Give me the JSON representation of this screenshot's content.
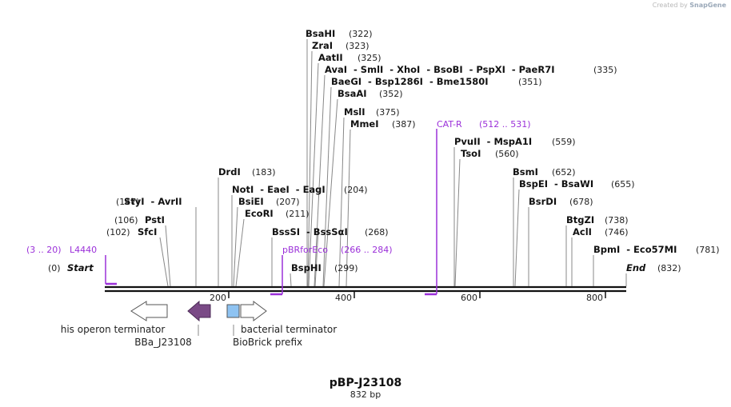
{
  "watermark": {
    "prefix": "Created by",
    "brand": "SnapGene"
  },
  "plasmid": {
    "name": "pBP-J23108",
    "length_label": "832 bp",
    "length_bp": 832
  },
  "axis": {
    "ticks": [
      "200",
      "400",
      "600",
      "800"
    ]
  },
  "enzymes": [
    {
      "label": "BsaHI",
      "pos": "(322)",
      "bp": 322
    },
    {
      "label": "ZraI",
      "pos": "(323)",
      "bp": 323
    },
    {
      "label": "AatII",
      "pos": "(325)",
      "bp": 325
    },
    {
      "label": "AvaI  - SmlI  - XhoI  - BsoBI  - PspXI  - PaeR7I",
      "pos": "(335)",
      "bp": 335
    },
    {
      "label": "BaeGI  - Bsp1286I  - Bme1580I",
      "pos": "(351)",
      "bp": 351
    },
    {
      "label": "BsaAI",
      "pos": "(352)",
      "bp": 352
    },
    {
      "label": "MslI",
      "pos": "(375)",
      "bp": 375
    },
    {
      "label": "MmeI",
      "pos": "(387)",
      "bp": 387
    },
    {
      "label": "PvuII  - MspA1I",
      "pos": "(559)",
      "bp": 559
    },
    {
      "label": "TsoI",
      "pos": "(560)",
      "bp": 560
    },
    {
      "label": "DrdI",
      "pos": "(183)",
      "bp": 183
    },
    {
      "label": "BsmI",
      "pos": "(652)",
      "bp": 652
    },
    {
      "label": "NotI  - EaeI  - EagI",
      "pos": "(204)",
      "bp": 204
    },
    {
      "label": "BspEI  - BsaWI",
      "pos": "(655)",
      "bp": 655
    },
    {
      "label": "StyI  - AvrII",
      "pos": "(147)",
      "bp": 147
    },
    {
      "label": "BsiEI",
      "pos": "(207)",
      "bp": 207
    },
    {
      "label": "BsrDI",
      "pos": "(678)",
      "bp": 678
    },
    {
      "label": "EcoRI",
      "pos": "(211)",
      "bp": 211
    },
    {
      "label": "PstI",
      "pos": "(106)",
      "bp": 106
    },
    {
      "label": "BtgZI",
      "pos": "(738)",
      "bp": 738
    },
    {
      "label": "SfcI",
      "pos": "(102)",
      "bp": 102
    },
    {
      "label": "BssSI  - BssSαI",
      "pos": "(268)",
      "bp": 268
    },
    {
      "label": "AclI",
      "pos": "(746)",
      "bp": 746
    },
    {
      "label": "BpmI  - Eco57MI",
      "pos": "(781)",
      "bp": 781
    },
    {
      "label": "BspHI",
      "pos": "(299)",
      "bp": 299
    },
    {
      "label": "Start",
      "pos": "(0)",
      "bp": 0
    },
    {
      "label": "End",
      "pos": "(832)",
      "bp": 832
    }
  ],
  "primers": [
    {
      "name": "L4440",
      "range": "(3 .. 20)",
      "start": 3,
      "end": 20
    },
    {
      "name": "pBRforEco",
      "range": "(266 .. 284)",
      "start": 266,
      "end": 284
    },
    {
      "name": "CAT-R",
      "range": "(512 .. 531)",
      "start": 512,
      "end": 531
    }
  ],
  "features": [
    {
      "name": "his operon terminator",
      "color": "#ffffff"
    },
    {
      "name": "BBa_J23108",
      "color": "#7a4a86"
    },
    {
      "name": "bacterial terminator",
      "color": "#ffffff"
    },
    {
      "name": "BioBrick prefix",
      "color": "#8ec3f2"
    }
  ],
  "colors": {
    "primer": "#9b30d9",
    "backbone": "#111111",
    "leader": "#888888"
  }
}
